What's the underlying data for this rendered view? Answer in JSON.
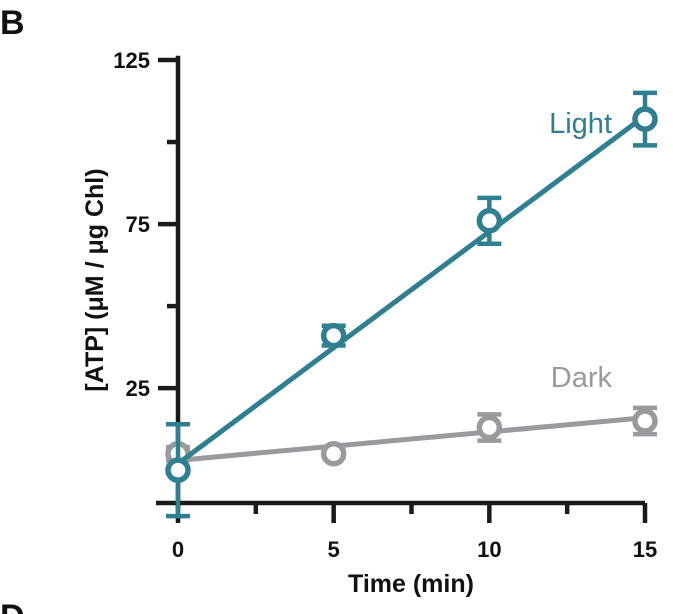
{
  "figure": {
    "panel_letter": "B",
    "panel_letter_bottom": "D"
  },
  "chart_data": {
    "type": "line",
    "xlabel": "Time (min)",
    "ylabel": "[ATP] (μM / μg Chl)",
    "xlim": [
      0,
      15
    ],
    "ylim": [
      -10,
      125
    ],
    "xticks": [
      0,
      5,
      10,
      15
    ],
    "xticks_minor": [
      2.5,
      7.5,
      12.5
    ],
    "yticks": [
      25,
      75,
      125
    ],
    "yticks_minor": [
      50,
      100
    ],
    "grid": false,
    "legend": "inline labels at right end of lines",
    "series": [
      {
        "name": "Light",
        "color": "#2e7f91",
        "x": [
          0,
          5,
          10,
          15
        ],
        "y": [
          0,
          41,
          76,
          107
        ],
        "err": [
          14,
          3,
          7,
          8
        ],
        "fit": [
          [
            0,
            2
          ],
          [
            15,
            108
          ]
        ]
      },
      {
        "name": "Dark",
        "color": "#9a9a9e",
        "x": [
          0,
          5,
          10,
          15
        ],
        "y": [
          5,
          5,
          13,
          15
        ],
        "err": [
          2,
          1,
          4,
          4
        ],
        "fit": [
          [
            0,
            3
          ],
          [
            15,
            16
          ]
        ]
      }
    ]
  }
}
